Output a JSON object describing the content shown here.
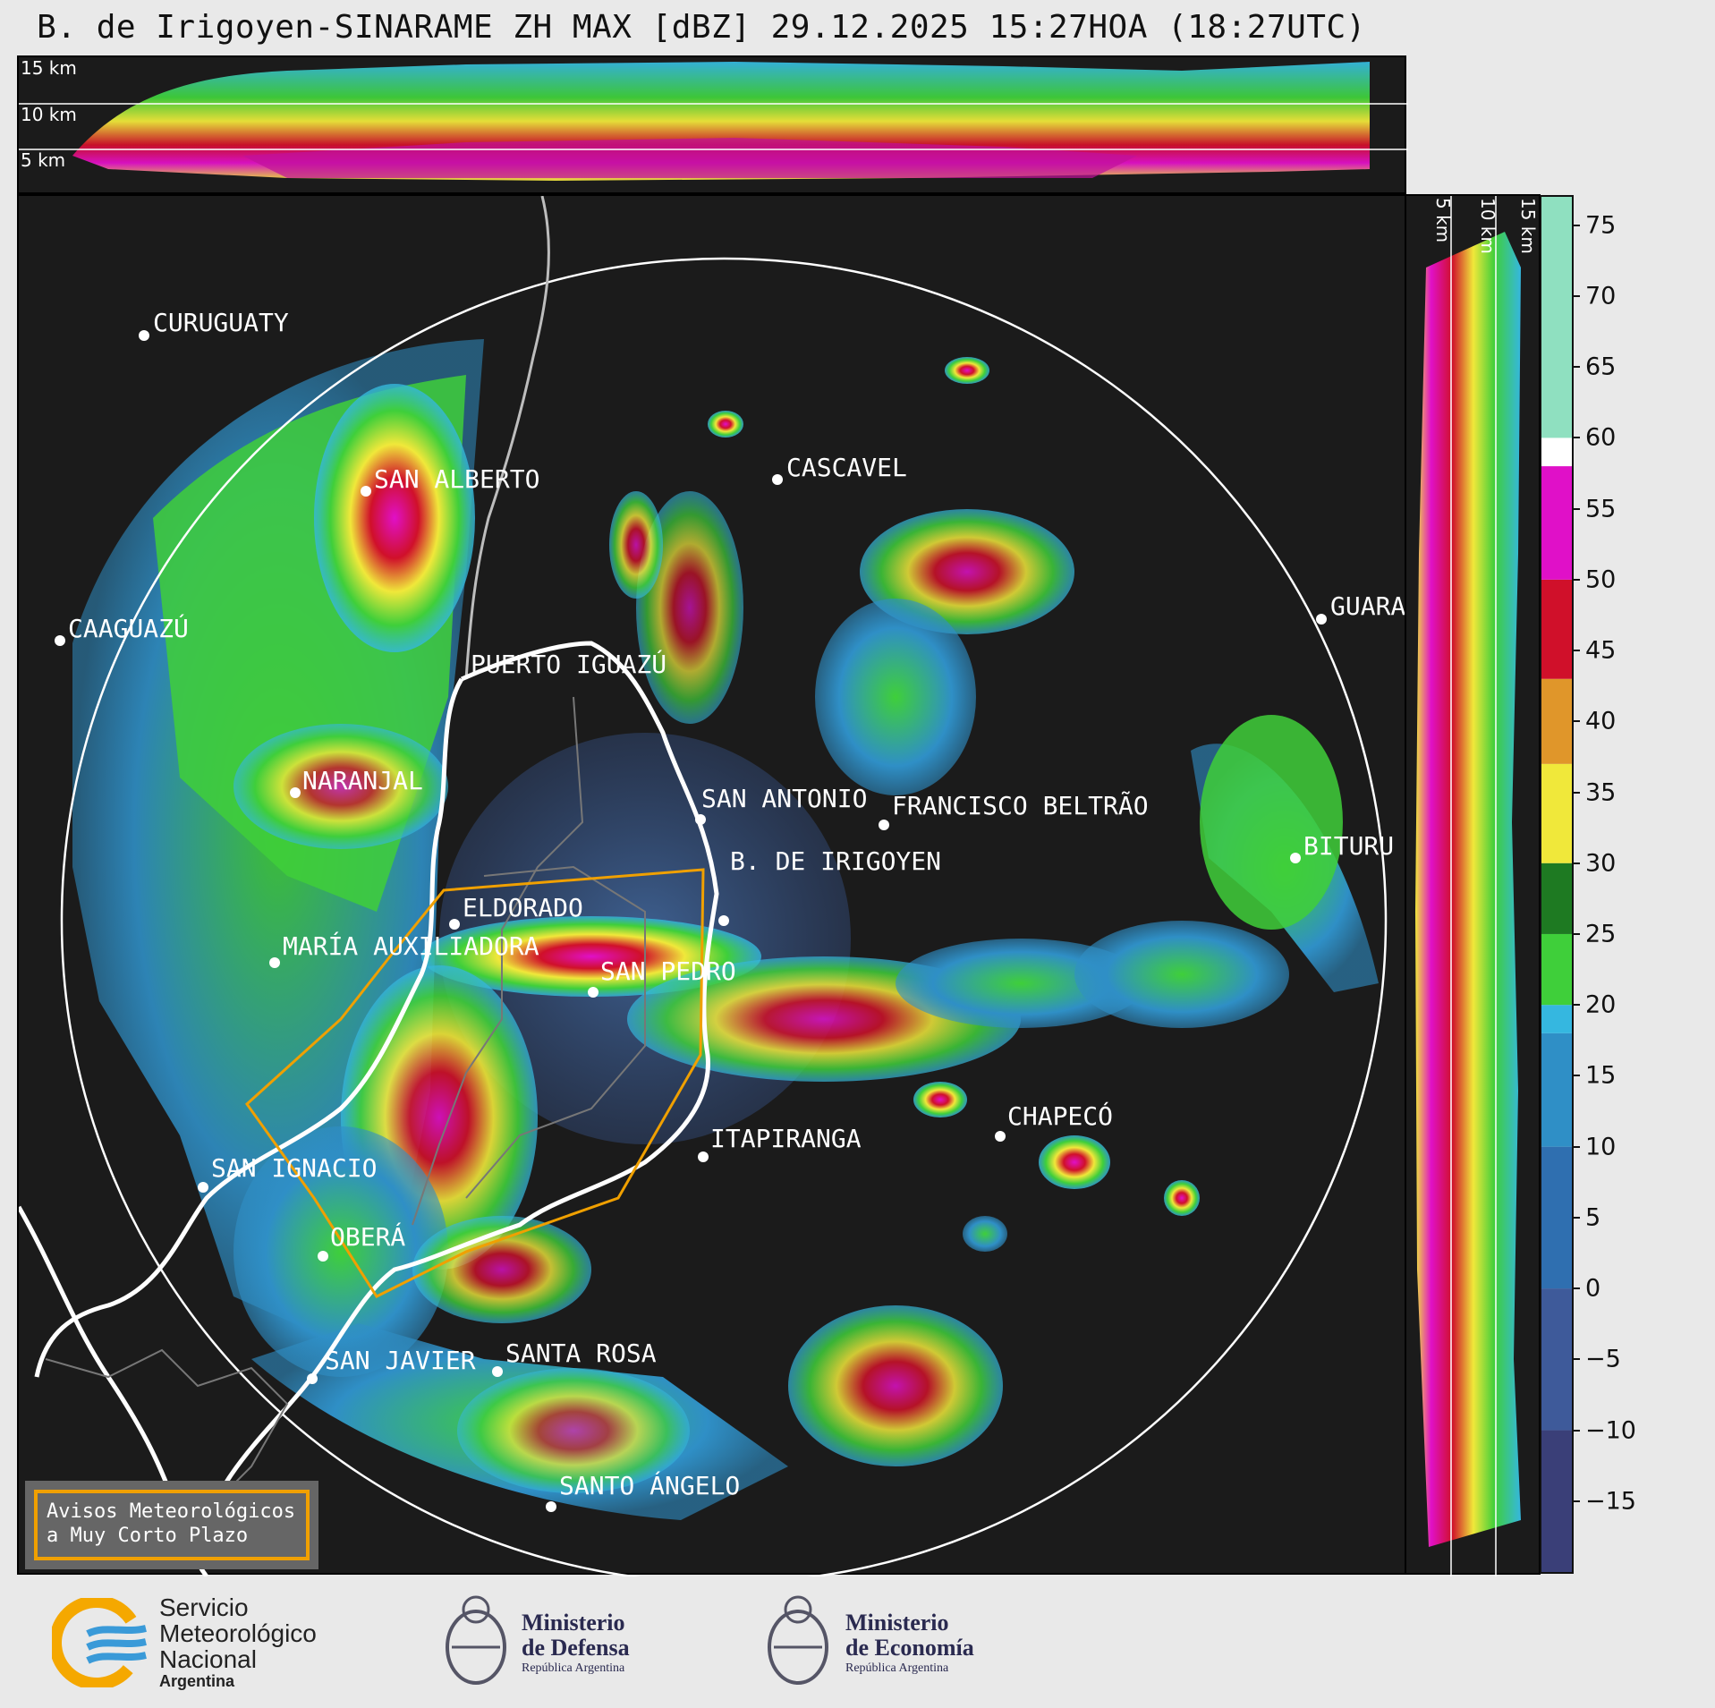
{
  "title": "B. de Irigoyen-SINARAME ZH MAX [dBZ] 29.12.2025 15:27HOA (18:27UTC)",
  "top_panel": {
    "height_labels": [
      "15 km",
      "10 km",
      "5 km"
    ]
  },
  "side_panel": {
    "height_labels": [
      "5 km",
      "10 km",
      "15 km"
    ]
  },
  "colorbar": {
    "ticks": [
      "75",
      "70",
      "65",
      "60",
      "55",
      "50",
      "45",
      "40",
      "35",
      "30",
      "25",
      "20",
      "15",
      "10",
      "5",
      "0",
      "−5",
      "−10",
      "−15"
    ],
    "range": [
      -20,
      77
    ],
    "colors": {
      "low": "#3a3f78",
      "blue": "#2f8fc6",
      "cyan": "#35b7e0",
      "green": "#3fcf3a",
      "dark_green": "#1e7a22",
      "yellow": "#f0e83a",
      "orange": "#e0962a",
      "red": "#d0102a",
      "magenta": "#e010c8",
      "white": "#ffffff",
      "mint": "#8fe0c0"
    }
  },
  "cities": [
    {
      "name": "CURUGUATY"
    },
    {
      "name": "SAN ALBERTO"
    },
    {
      "name": "CASCAVEL"
    },
    {
      "name": "CAAGUAZÚ"
    },
    {
      "name": "PUERTO IGUAZÚ"
    },
    {
      "name": "GUARA"
    },
    {
      "name": "NARANJAL"
    },
    {
      "name": "SAN ANTONIO"
    },
    {
      "name": "FRANCISCO BELTRÃO"
    },
    {
      "name": "B. DE IRIGOYEN"
    },
    {
      "name": "BITURU"
    },
    {
      "name": "ELDORADO"
    },
    {
      "name": "MARÍA AUXILIADORA"
    },
    {
      "name": "SAN PEDRO"
    },
    {
      "name": "CHAPECÓ"
    },
    {
      "name": "ITAPIRANGA"
    },
    {
      "name": "SAN IGNACIO"
    },
    {
      "name": "OBERÁ"
    },
    {
      "name": "SAN JAVIER"
    },
    {
      "name": "SANTA ROSA"
    },
    {
      "name": "SANTO ÁNGELO"
    }
  ],
  "aviso": {
    "line1": "Avisos Meteorológicos",
    "line2": "a Muy Corto Plazo"
  },
  "logos": {
    "smn": {
      "line1": "Servicio",
      "line2": "Meteorológico",
      "line3": "Nacional",
      "line4": "Argentina"
    },
    "defensa": {
      "line1": "Ministerio",
      "line2": "de Defensa",
      "line3": "República Argentina"
    },
    "economia": {
      "line1": "Ministerio",
      "line2": "de Economía",
      "line3": "República Argentina"
    }
  }
}
